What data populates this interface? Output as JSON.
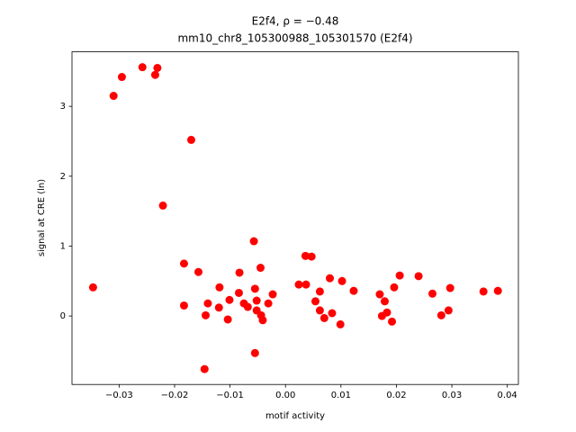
{
  "chart_data": {
    "type": "scatter",
    "title": "E2f4, ρ = −0.48",
    "subtitle": "mm10_chr8_105300988_105301570 (E2f4)",
    "x_label": "motif activity",
    "y_label": "signal at CRE (ln)",
    "color": "#ff0000",
    "xlim": [
      -0.0385,
      0.042
    ],
    "ylim": [
      -0.98,
      3.78
    ],
    "xticks": [
      {
        "value": -0.03,
        "label": "−0.03"
      },
      {
        "value": -0.02,
        "label": "−0.02"
      },
      {
        "value": -0.01,
        "label": "−0.01"
      },
      {
        "value": 0,
        "label": "0.00"
      },
      0.01,
      0.02,
      0.03,
      0.04
    ],
    "yticks": [
      0,
      1,
      2,
      3
    ],
    "x": [
      -0.0347,
      -0.031,
      -0.0295,
      -0.0258,
      -0.0235,
      -0.0231,
      -0.017,
      -0.0221,
      -0.0183,
      -0.0183,
      -0.0157,
      -0.0146,
      -0.0144,
      -0.014,
      -0.0119,
      -0.012,
      -0.0104,
      -0.0101,
      -0.0084,
      -0.0083,
      -0.0075,
      -0.0068,
      -0.0057,
      -0.0055,
      -0.0055,
      -0.0052,
      -0.0052,
      -0.0045,
      -0.0044,
      -0.0041,
      -0.0031,
      -0.0023,
      0.0024,
      0.0036,
      0.0037,
      0.0047,
      0.0054,
      0.0062,
      0.0062,
      0.007,
      0.008,
      0.0084,
      0.0099,
      0.0102,
      0.0123,
      0.017,
      0.0174,
      0.0179,
      0.0183,
      0.0192,
      0.0196,
      0.0206,
      0.024,
      0.0265,
      0.0281,
      0.0294,
      0.0297,
      0.0357,
      0.0383
    ],
    "values": [
      0.41,
      3.15,
      3.42,
      3.56,
      3.45,
      3.55,
      2.52,
      1.58,
      0.75,
      0.15,
      0.63,
      -0.76,
      0.01,
      0.18,
      0.41,
      0.12,
      -0.05,
      0.23,
      0.33,
      0.62,
      0.18,
      0.13,
      1.07,
      -0.53,
      0.39,
      0.22,
      0.08,
      0.69,
      0.01,
      -0.06,
      0.18,
      0.31,
      0.45,
      0.86,
      0.45,
      0.85,
      0.21,
      0.35,
      0.08,
      -0.03,
      0.54,
      0.04,
      -0.12,
      0.5,
      0.36,
      0.31,
      0.0,
      0.21,
      0.05,
      -0.08,
      0.41,
      0.58,
      0.57,
      0.32,
      0.01,
      0.08,
      0.4,
      0.35,
      0.36
    ]
  }
}
